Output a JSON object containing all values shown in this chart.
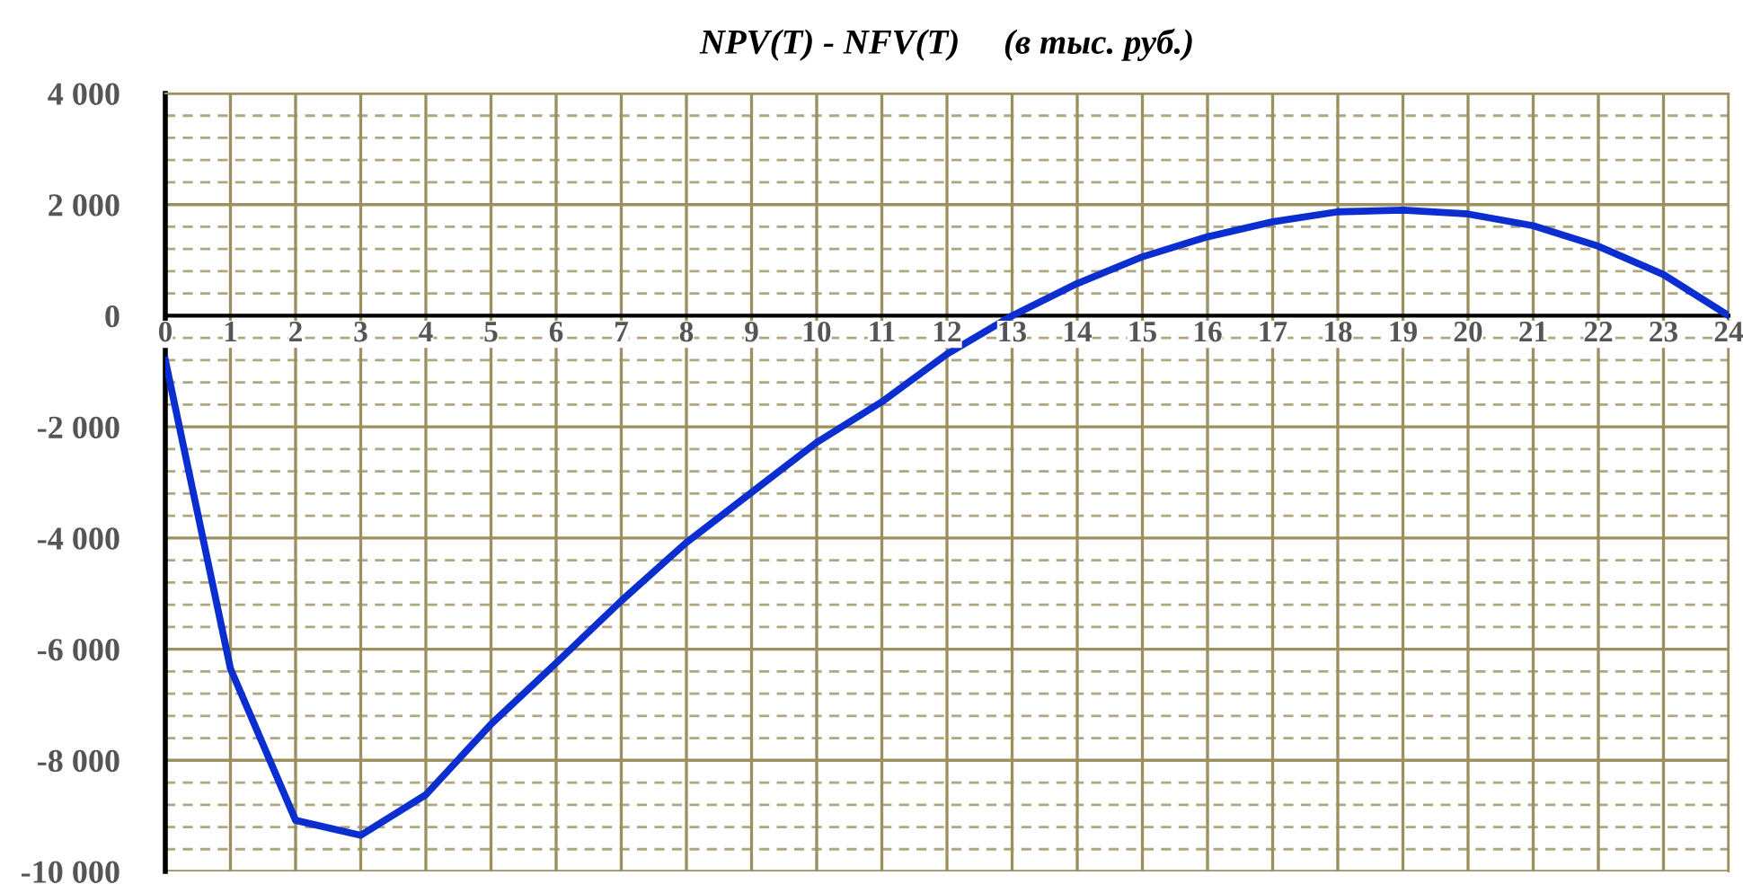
{
  "chart_data": {
    "type": "line",
    "title": "NPV(T) - NFV(T)     (в тыс. руб.)",
    "x": [
      0,
      1,
      2,
      3,
      4,
      5,
      6,
      7,
      8,
      9,
      10,
      11,
      12,
      13,
      14,
      15,
      16,
      17,
      18,
      19,
      20,
      21,
      22,
      23,
      24
    ],
    "series": [
      {
        "color": "#0a2ecf",
        "values": [
          -800,
          -6350,
          -9080,
          -9350,
          -8620,
          -7350,
          -6250,
          -5130,
          -4080,
          -3180,
          -2280,
          -1550,
          -690,
          0,
          580,
          1060,
          1420,
          1690,
          1870,
          1900,
          1830,
          1620,
          1250,
          740,
          0
        ]
      }
    ],
    "xlim": [
      0,
      24
    ],
    "xticks": [
      0,
      1,
      2,
      3,
      4,
      5,
      6,
      7,
      8,
      9,
      10,
      11,
      12,
      13,
      14,
      15,
      16,
      17,
      18,
      19,
      20,
      21,
      22,
      23,
      24
    ],
    "ylim": [
      -10000,
      4000
    ],
    "yticks": [
      {
        "value": -10000,
        "label": "-10 000"
      },
      {
        "value": -9600,
        "label": null
      },
      {
        "value": -9200,
        "label": null
      },
      {
        "value": -8800,
        "label": null
      },
      {
        "value": -8400,
        "label": null
      },
      {
        "value": -8000,
        "label": "-8 000"
      },
      {
        "value": -7600,
        "label": null
      },
      {
        "value": -7200,
        "label": null
      },
      {
        "value": -6800,
        "label": null
      },
      {
        "value": -6400,
        "label": null
      },
      {
        "value": -6000,
        "label": "-6 000"
      },
      {
        "value": -5600,
        "label": null
      },
      {
        "value": -5200,
        "label": null
      },
      {
        "value": -4800,
        "label": null
      },
      {
        "value": -4400,
        "label": null
      },
      {
        "value": -4000,
        "label": "-4 000"
      },
      {
        "value": -3600,
        "label": null
      },
      {
        "value": -3200,
        "label": null
      },
      {
        "value": -2800,
        "label": null
      },
      {
        "value": -2400,
        "label": null
      },
      {
        "value": -2000,
        "label": "-2 000"
      },
      {
        "value": -1600,
        "label": null
      },
      {
        "value": -1200,
        "label": null
      },
      {
        "value": -800,
        "label": null
      },
      {
        "value": -400,
        "label": null
      },
      0,
      {
        "value": 400,
        "label": null
      },
      {
        "value": 800,
        "label": null
      },
      {
        "value": 1200,
        "label": null
      },
      {
        "value": 1600,
        "label": null
      },
      {
        "value": 2000,
        "label": "2 000"
      },
      {
        "value": 2400,
        "label": null
      },
      {
        "value": 2800,
        "label": null
      },
      {
        "value": 3200,
        "label": null
      },
      {
        "value": 3600,
        "label": null
      },
      {
        "value": 4000,
        "label": "4 000"
      }
    ],
    "grid": true,
    "marker": "none",
    "line_style": "solid",
    "legend": false
  }
}
